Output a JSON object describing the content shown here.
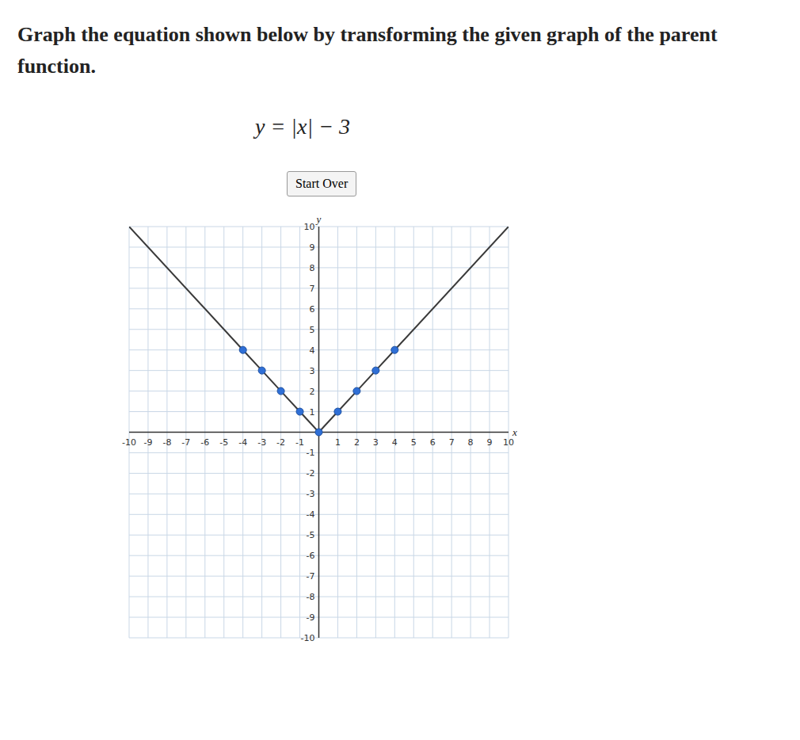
{
  "chart_data": {
    "type": "line",
    "title": "Graph the equation shown below by transforming the given graph of the parent function.",
    "subtitle": "y = |x| − 3",
    "annotations": [
      "Start Over"
    ],
    "x_label": "x",
    "y_label": "y",
    "x": [
      -10,
      -4,
      -3,
      -2,
      -1,
      0,
      1,
      2,
      3,
      4,
      10
    ],
    "series": [
      {
        "color": "#3a3a3a",
        "values": [
          10,
          4,
          3,
          2,
          1,
          0,
          1,
          2,
          3,
          4,
          10
        ],
        "type": "line",
        "marker": "none"
      },
      {
        "color": "#2f6fd6",
        "values": [
          null,
          4,
          3,
          2,
          1,
          0,
          1,
          2,
          3,
          4,
          null
        ],
        "type": "scatter",
        "marker": "circle"
      }
    ],
    "xlim": [
      -10,
      10
    ],
    "ylim": [
      -10,
      10
    ],
    "xticks": [
      -10,
      -9,
      -8,
      -7,
      -6,
      -5,
      -4,
      -3,
      -2,
      -1,
      1,
      2,
      3,
      4,
      5,
      6,
      7,
      8,
      9,
      10
    ],
    "yticks": [
      -10,
      -9,
      -8,
      -7,
      -6,
      -5,
      -4,
      -3,
      -2,
      -1,
      1,
      2,
      3,
      4,
      5,
      6,
      7,
      8,
      9,
      10
    ],
    "grid": true
  }
}
